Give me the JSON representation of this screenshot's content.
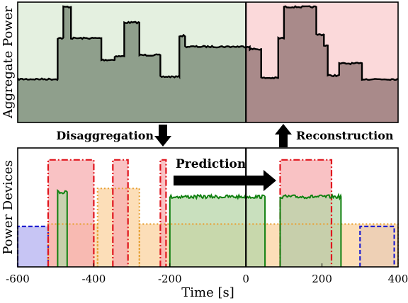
{
  "chart_data": [
    {
      "type": "area",
      "ylabel": "Aggregate Power",
      "xlim": [
        -600,
        400
      ],
      "ylim": [
        0,
        10
      ],
      "regions": [
        {
          "from": -600,
          "to": 0,
          "color": "#e4f0e0"
        },
        {
          "from": 0,
          "to": 400,
          "color": "#fbd9da"
        }
      ],
      "fill_colors": {
        "past": "#8f9f8c",
        "future": "#a98a8a"
      },
      "step_points": [
        [
          -600,
          3.6
        ],
        [
          -495,
          3.6
        ],
        [
          -495,
          7
        ],
        [
          -480,
          7
        ],
        [
          -480,
          9.6
        ],
        [
          -460,
          9.6
        ],
        [
          -460,
          7
        ],
        [
          -380,
          7
        ],
        [
          -380,
          5.2
        ],
        [
          -345,
          5.2
        ],
        [
          -345,
          5.5
        ],
        [
          -320,
          5.5
        ],
        [
          -320,
          8.3
        ],
        [
          -280,
          8.3
        ],
        [
          -280,
          5.6
        ],
        [
          -225,
          5.6
        ],
        [
          -225,
          3.8
        ],
        [
          -175,
          3.8
        ],
        [
          -175,
          7.2
        ],
        [
          -160,
          7.2
        ],
        [
          -160,
          6.3
        ],
        [
          10,
          6.3
        ],
        [
          10,
          6.1
        ],
        [
          40,
          6.1
        ],
        [
          40,
          3.7
        ],
        [
          85,
          3.7
        ],
        [
          85,
          7
        ],
        [
          100,
          7
        ],
        [
          100,
          9.6
        ],
        [
          185,
          9.6
        ],
        [
          185,
          7.3
        ],
        [
          205,
          7.3
        ],
        [
          205,
          6.4
        ],
        [
          215,
          6.4
        ],
        [
          215,
          3.9
        ],
        [
          245,
          3.9
        ],
        [
          245,
          4.9
        ],
        [
          305,
          4.9
        ],
        [
          305,
          3.6
        ],
        [
          400,
          3.6
        ]
      ],
      "divider_x": 0
    },
    {
      "type": "area",
      "ylabel": "Power Devices",
      "xlabel": "Time [s]",
      "xlim": [
        -600,
        400
      ],
      "ylim": [
        0,
        10
      ],
      "xticks": [
        -600,
        -400,
        -200,
        0,
        200,
        400
      ],
      "xtick_labels": [
        "-600",
        "-400",
        "-200",
        "0",
        "200",
        "400"
      ],
      "series": [
        {
          "color": "#1f1fd0",
          "fill": "#b4b2f0",
          "line": "dashed",
          "segments": [
            {
              "x": [
                -600,
                -520
              ],
              "level": 3.4
            },
            {
              "x": [
                300,
                390
              ],
              "level": 3.4
            }
          ]
        },
        {
          "color": "#e8a33a",
          "fill": "#fbd3a0",
          "line": "dotted",
          "segments": [
            {
              "x": [
                -520,
                -390
              ],
              "level": 3.6
            },
            {
              "x": [
                -390,
                -280
              ],
              "level": 6.6
            },
            {
              "x": [
                -280,
                400
              ],
              "level": 3.6
            }
          ]
        },
        {
          "color": "#e0161e",
          "fill": "#f7aeb0",
          "line": "dashdot",
          "segments": [
            {
              "x": [
                -520,
                -400
              ],
              "level": 9.0
            },
            {
              "x": [
                -350,
                -310
              ],
              "level": 9.0
            },
            {
              "x": [
                -225,
                -210
              ],
              "level": 9.0
            },
            {
              "x": [
                90,
                225
              ],
              "level": 9.0
            }
          ]
        },
        {
          "color": "#108010",
          "fill": "#b7d6a8",
          "line": "solid",
          "segments": [
            {
              "x": [
                -495,
                -470
              ],
              "level": 6.3
            },
            {
              "x": [
                -200,
                50
              ],
              "level": 5.9
            },
            {
              "x": [
                90,
                250
              ],
              "level": 5.9
            }
          ]
        }
      ],
      "divider_x": 0
    }
  ],
  "annotations": {
    "disaggregation": "Disaggregation",
    "reconstruction": "Reconstruction",
    "prediction": "Prediction"
  }
}
